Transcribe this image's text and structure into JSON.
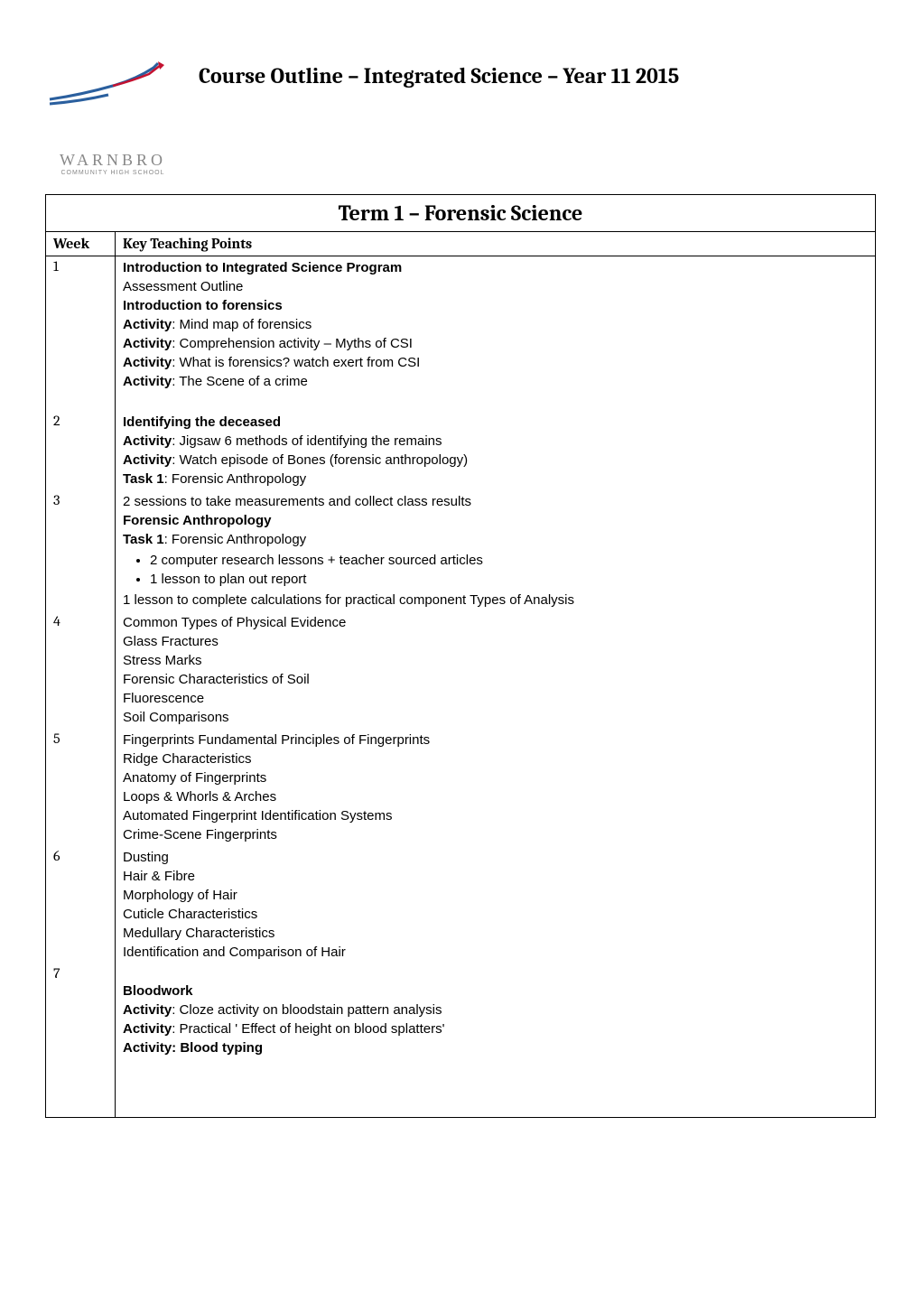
{
  "header": {
    "logo_text": "WARNBRO",
    "logo_subtext": "COMMUNITY HIGH SCHOOL",
    "title": "Course Outline – Integrated Science – Year 11 2015"
  },
  "table": {
    "term_title": "Term 1 – Forensic Science",
    "col_week": "Week",
    "col_points": "Key Teaching Points",
    "weeks": [
      {
        "num": "1",
        "lines": [
          {
            "text": "Introduction to Integrated Science Program",
            "bold": true
          },
          {
            "text": "Assessment Outline"
          },
          {
            "text": "Introduction to forensics",
            "bold": true
          },
          {
            "html": "<span class='bold'>Activity</span>: Mind map of forensics"
          },
          {
            "html": "<span class='bold'>Activity</span>: Comprehension activity – Myths of CSI"
          },
          {
            "html": "<span class='bold'>Activity</span>: What is forensics? watch exert from CSI"
          },
          {
            "html": "<span class='bold'>Activity</span>: The Scene of a crime"
          }
        ],
        "spacer_after": true
      },
      {
        "num": "2",
        "lines": [
          {
            "text": "Identifying the deceased",
            "bold": true
          },
          {
            "html": "<span class='bold'>Activity</span>: Jigsaw 6 methods of identifying the remains"
          },
          {
            "html": "<span class='bold'>Activity</span>: Watch episode of Bones (forensic anthropology)"
          },
          {
            "html": "<span class='bold'>Task 1</span>: Forensic Anthropology"
          }
        ]
      },
      {
        "num": "3",
        "lines": [
          {
            "text": "2 sessions to take measurements and collect class results"
          },
          {
            "text": "Forensic Anthropology",
            "bold": true
          },
          {
            "html": "<span class='bold'>Task 1</span>: Forensic Anthropology"
          }
        ],
        "bullets": [
          "2 computer research lessons + teacher sourced articles",
          "1 lesson to plan out report"
        ],
        "lines_after": [
          {
            "text": "1 lesson to complete calculations for practical component Types of Analysis"
          }
        ]
      },
      {
        "num": "4",
        "lines": [
          {
            "text": "Common Types of Physical Evidence"
          },
          {
            "text": "Glass Fractures"
          },
          {
            "text": "Stress Marks"
          },
          {
            "text": "Forensic Characteristics of Soil"
          },
          {
            "text": "Fluorescence"
          },
          {
            "text": "Soil Comparisons"
          }
        ]
      },
      {
        "num": "5",
        "lines": [
          {
            "text": "Fingerprints Fundamental Principles of Fingerprints"
          },
          {
            "text": "Ridge Characteristics"
          },
          {
            "text": "Anatomy of Fingerprints"
          },
          {
            "text": "Loops  & Whorls & Arches"
          },
          {
            "text": "Automated Fingerprint Identification Systems"
          },
          {
            "text": "Crime-Scene Fingerprints"
          }
        ]
      },
      {
        "num": "6",
        "lines": [
          {
            "text": "Dusting"
          },
          {
            "text": "Hair & Fibre"
          },
          {
            "text": "Morphology of Hair"
          },
          {
            "text": "Cuticle Characteristics"
          },
          {
            "text": "Medullary Characteristics"
          },
          {
            "text": "Identification and Comparison of Hair"
          }
        ],
        "spacer_before_next": true
      },
      {
        "num": "7",
        "lines": [
          {
            "text": "Bloodwork",
            "bold": true
          },
          {
            "html": "<span class='bold'>Activity</span>: Cloze activity on bloodstain pattern analysis"
          },
          {
            "html": "<span class='bold'>Activity</span>: Practical ' Effect of height on blood splatters'"
          },
          {
            "text": "Activity: Blood typing",
            "bold": true
          }
        ]
      }
    ]
  },
  "colors": {
    "accent_blue": "#2a5f9e",
    "accent_red": "#c41230",
    "text_gray": "#999999",
    "border": "#000000"
  }
}
